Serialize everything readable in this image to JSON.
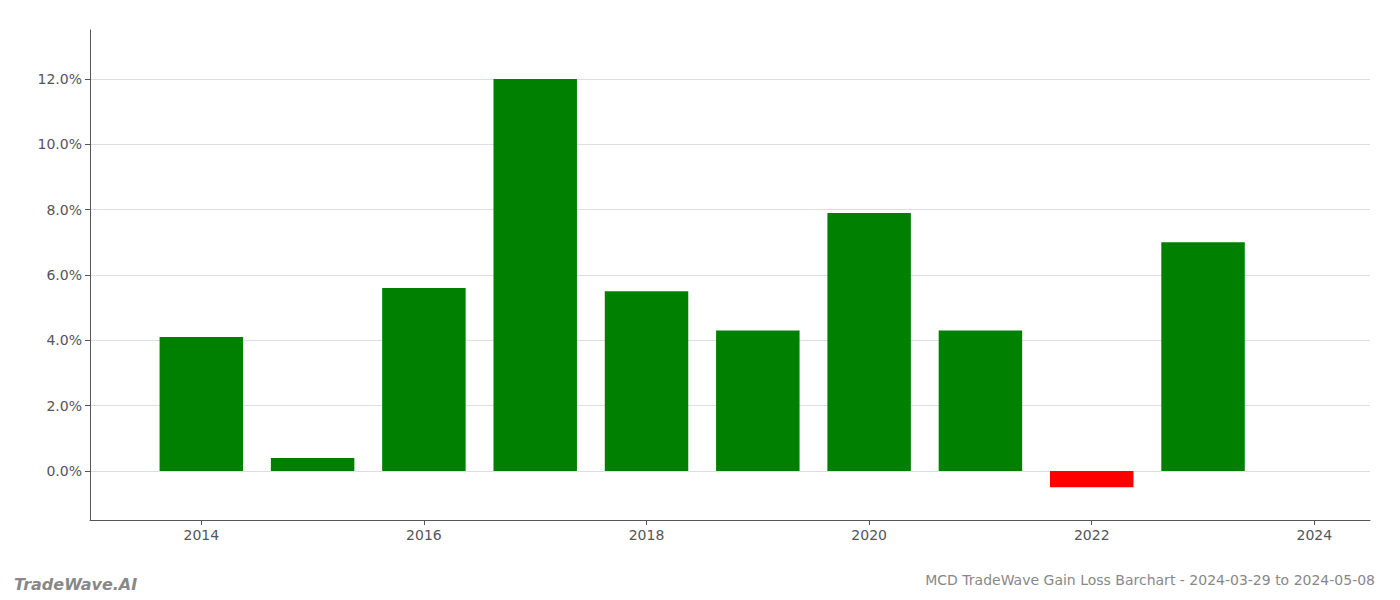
{
  "chart_data": {
    "type": "bar",
    "title": "MCD TradeWave Gain Loss Barchart - 2024-03-29 to 2024-05-08",
    "annotations": [
      "TradeWave.AI"
    ],
    "x": [
      2014,
      2015,
      2016,
      2017,
      2018,
      2019,
      2020,
      2021,
      2022,
      2023
    ],
    "values": [
      0.041,
      0.004,
      0.056,
      0.12,
      0.055,
      0.043,
      0.079,
      0.043,
      -0.005,
      0.07
    ],
    "colors": [
      "#008000",
      "#008000",
      "#008000",
      "#008000",
      "#008000",
      "#008000",
      "#008000",
      "#008000",
      "#ff0000",
      "#008000"
    ],
    "xlim": [
      2013.0,
      2024.5
    ],
    "xticks": [
      2014,
      2016,
      2018,
      2020,
      2022,
      2024
    ],
    "ylim": [
      -0.015,
      0.135
    ],
    "yticks": [
      {
        "value": 0.0,
        "label": "0.0%"
      },
      {
        "value": 0.02,
        "label": "2.0%"
      },
      {
        "value": 0.04,
        "label": "4.0%"
      },
      {
        "value": 0.06,
        "label": "6.0%"
      },
      {
        "value": 0.08,
        "label": "8.0%"
      },
      {
        "value": 0.1,
        "label": "10.0%"
      },
      {
        "value": 0.12,
        "label": "12.0%"
      }
    ],
    "grid": true
  }
}
